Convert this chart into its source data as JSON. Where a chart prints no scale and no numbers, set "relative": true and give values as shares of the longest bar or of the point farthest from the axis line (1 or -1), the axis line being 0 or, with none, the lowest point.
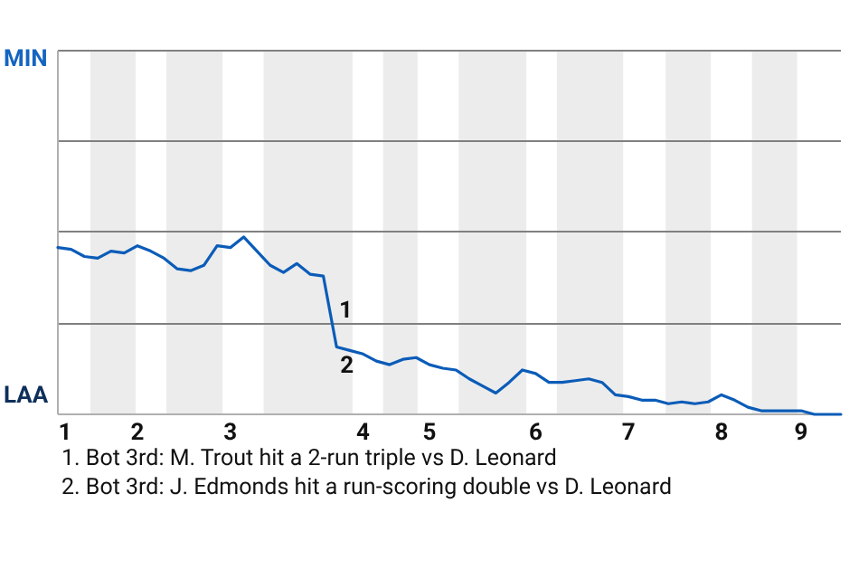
{
  "chart_data": {
    "type": "line",
    "relative": true,
    "categories": [
      "1",
      null,
      null,
      null,
      null,
      null,
      "2",
      null,
      null,
      null,
      null,
      null,
      null,
      "3",
      null,
      null,
      null,
      null,
      null,
      null,
      null,
      null,
      null,
      "4",
      null,
      null,
      null,
      null,
      "5",
      null,
      null,
      null,
      null,
      null,
      null,
      null,
      "6",
      null,
      null,
      null,
      null,
      null,
      null,
      "7",
      null,
      null,
      null,
      null,
      null,
      null,
      "8",
      null,
      null,
      null,
      null,
      null,
      "9",
      null,
      null,
      null
    ],
    "series": [
      {
        "color": "#0b5cb8",
        "values": [
          0.94,
          0.93,
          0.89,
          0.88,
          0.92,
          0.91,
          0.95,
          0.92,
          0.88,
          0.82,
          0.81,
          0.84,
          0.95,
          0.94,
          1,
          0.92,
          0.84,
          0.8,
          0.85,
          0.79,
          0.78,
          0.38,
          0.36,
          0.34,
          0.3,
          0.28,
          0.31,
          0.32,
          0.28,
          0.26,
          0.25,
          0.2,
          0.16,
          0.12,
          0.18,
          0.25,
          0.23,
          0.18,
          0.18,
          0.19,
          0.2,
          0.18,
          0.11,
          0.1,
          0.08,
          0.08,
          0.06,
          0.07,
          0.06,
          0.07,
          0.11,
          0.08,
          0.04,
          0.02,
          0.02,
          0.02,
          0.02,
          0,
          0,
          0
        ]
      }
    ],
    "marker": "none",
    "line_style": "solid",
    "ref_lines": [
      {
        "axis": "y",
        "value": 0.51,
        "color": "#808080"
      },
      {
        "axis": "y",
        "value": 1.03,
        "color": "#808080"
      },
      {
        "axis": "y",
        "value": 1.54,
        "color": "#808080"
      },
      {
        "axis": "y",
        "value": 2.05,
        "color": "#808080"
      }
    ],
    "annotations": [
      "MIN",
      "LAA",
      "1",
      "2",
      "1. Bot 3rd: M. Trout hit a 2-run triple vs D. Leonard",
      "2. Bot 3rd: J. Edmonds hit a run-scoring double vs D. Leonard"
    ]
  }
}
